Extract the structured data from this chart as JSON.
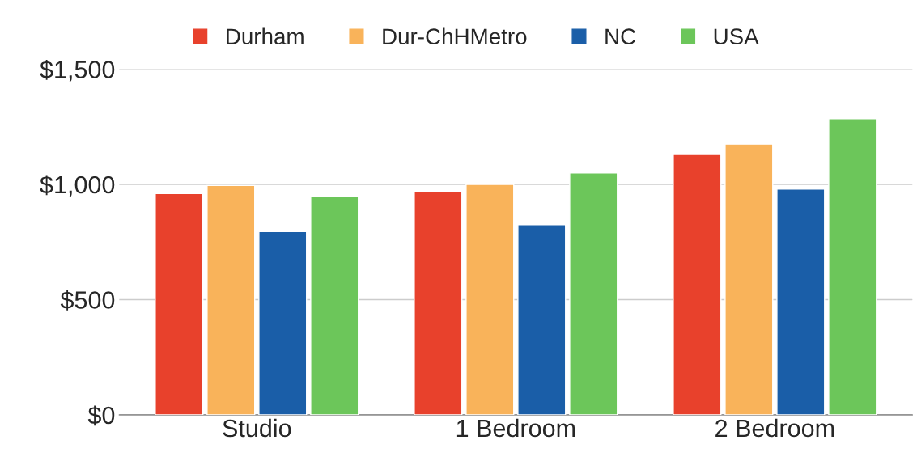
{
  "chart_data": {
    "type": "bar",
    "categories": [
      "Studio",
      "1 Bedroom",
      "2 Bedroom"
    ],
    "series": [
      {
        "name": "Durham",
        "color": "#e8412c",
        "values": [
          960,
          970,
          1130
        ]
      },
      {
        "name": "Dur-ChHMetro",
        "color": "#f9b35a",
        "values": [
          995,
          1000,
          1175
        ]
      },
      {
        "name": "NC",
        "color": "#1a5ea8",
        "values": [
          795,
          825,
          980
        ]
      },
      {
        "name": "USA",
        "color": "#6cc65a",
        "values": [
          950,
          1050,
          1285
        ]
      }
    ],
    "ylim": [
      0,
      1500
    ],
    "yticks": [
      {
        "value": 0,
        "label": "$0"
      },
      {
        "value": 500,
        "label": "$500"
      },
      {
        "value": 1000,
        "label": "$1,000"
      },
      {
        "value": 1500,
        "label": "$1,500"
      }
    ],
    "grid": "y",
    "legend": "top"
  }
}
